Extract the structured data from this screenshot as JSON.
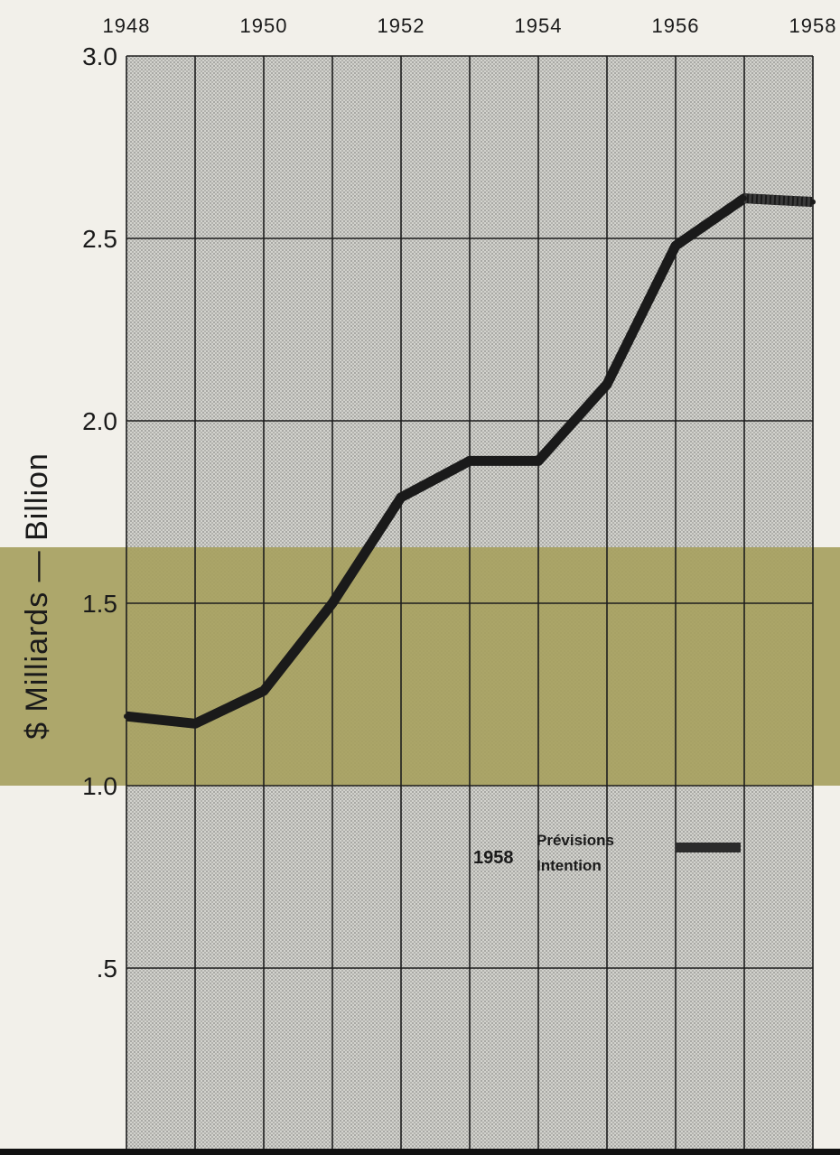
{
  "chart_data": {
    "type": "line",
    "x": [
      1948,
      1949,
      1950,
      1951,
      1952,
      1953,
      1954,
      1955,
      1956,
      1957,
      1958
    ],
    "series": [
      {
        "values": [
          1.19,
          1.17,
          1.26,
          1.5,
          1.79,
          1.89,
          1.89,
          2.1,
          2.48,
          2.61,
          2.6
        ]
      }
    ],
    "xticks": [
      "1948",
      "1950",
      "1952",
      "1954",
      "1956",
      "1958"
    ],
    "yticks": [
      "3.0",
      "2.5",
      "2.0",
      "1.5",
      "1.0",
      ".5"
    ],
    "ylabel": "$ Milliards — Billion",
    "xlim": [
      1948,
      1958
    ],
    "ylim": [
      0.2,
      3.0
    ],
    "grid": true,
    "legend": {
      "year": "1958",
      "line1": "Prévisions",
      "line2": "Intention",
      "placement": "lower-right"
    },
    "colors": {
      "line": "#1a1a1a",
      "grid": "#1e1e1e",
      "plot_bg": "#c9c9c4",
      "band": "#a7a160",
      "page_bg": "#f2f0ea"
    }
  }
}
